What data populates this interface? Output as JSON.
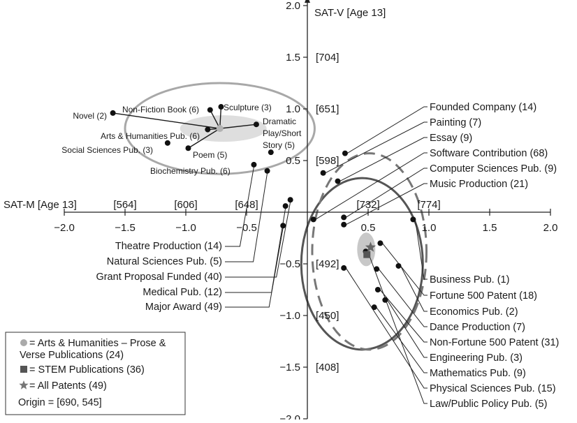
{
  "chart_data": {
    "type": "scatter",
    "xlabel": "SAT-M [Age 13]",
    "ylabel": "SAT-V [Age 13]",
    "xlim": [
      -2.0,
      2.0
    ],
    "ylim": [
      -2.0,
      2.0
    ],
    "x_ticks": [
      "−2.0",
      "−1.5",
      "−1.0",
      "−0.5",
      "0.5",
      "1.0",
      "1.5",
      "2.0"
    ],
    "y_ticks": [
      "2.0",
      "1.5",
      "1.0",
      "0.5",
      "−0.5",
      "−1.0",
      "−1.5",
      "−2.0"
    ],
    "x_bracket_labels": [
      "[564]",
      "[606]",
      "[648]",
      "[732]",
      "[774]"
    ],
    "y_bracket_labels": [
      "[704]",
      "[651]",
      "[598]",
      "[492]",
      "[450]",
      "[408]"
    ],
    "grid": false,
    "legend_position": "bottom-left",
    "legend": [
      {
        "symbol": "circle",
        "text": "= Arts & Humanities – Prose & Verse Publications (24)"
      },
      {
        "symbol": "square",
        "text": "= STEM Publications (36)"
      },
      {
        "symbol": "star",
        "text": "= All Patents (49)"
      },
      {
        "symbol": "",
        "text": "Origin = [690, 545]"
      }
    ],
    "centroids": {
      "arts_humanities": {
        "x": -0.72,
        "y": 0.81
      },
      "stem": {
        "x": 0.49,
        "y": -0.41
      },
      "patents": {
        "x": 0.52,
        "y": -0.34
      }
    },
    "arts_points": [
      {
        "label": "Novel (2)",
        "x": -1.6,
        "y": 0.96
      },
      {
        "label": "Non-Fiction Book (6)",
        "x": -0.8,
        "y": 0.99
      },
      {
        "label": "Sculpture (3)",
        "x": -0.71,
        "y": 1.02
      },
      {
        "label": "Dramatic Play/Short Story (5)",
        "x": -0.42,
        "y": 0.85
      },
      {
        "label": "Arts & Humanities Pub. (6)",
        "x": -0.82,
        "y": 0.8
      },
      {
        "label": "Social Sciences Pub. (3)",
        "x": -1.15,
        "y": 0.67
      },
      {
        "label": "Poem (5)",
        "x": -0.98,
        "y": 0.62
      },
      {
        "label": "Biochemistry Pub. (6)",
        "x": -0.3,
        "y": 0.58
      }
    ],
    "left_points": [
      {
        "label": "Theatre Production (14)",
        "x": -0.44,
        "y": 0.46
      },
      {
        "label": "Natural Sciences Pub. (5)",
        "x": -0.33,
        "y": 0.4
      },
      {
        "label": "Grant Proposal Funded (40)",
        "x": -0.14,
        "y": 0.12
      },
      {
        "label": "Medical Pub. (12)",
        "x": -0.18,
        "y": 0.06
      },
      {
        "label": "Major Award (49)",
        "x": -0.2,
        "y": -0.13
      }
    ],
    "right_points": [
      {
        "label": "Founded Company (14)",
        "x": 0.31,
        "y": 0.57
      },
      {
        "label": "Painting (7)",
        "x": 0.13,
        "y": 0.38
      },
      {
        "label": "Essay (9)",
        "x": 0.25,
        "y": 0.3
      },
      {
        "label": "Software Contribution (68)",
        "x": 0.05,
        "y": -0.07
      },
      {
        "label": "Computer Sciences Pub. (9)",
        "x": 0.3,
        "y": -0.05
      },
      {
        "label": "Music Production (21)",
        "x": 0.3,
        "y": -0.12
      },
      {
        "label": "Business Pub. (1)",
        "x": 0.87,
        "y": -0.07
      },
      {
        "label": "Fortune 500 Patent (18)",
        "x": 0.6,
        "y": -0.3
      },
      {
        "label": "Economics Pub. (2)",
        "x": 0.75,
        "y": -0.52
      },
      {
        "label": "Dance Production (7)",
        "x": 0.57,
        "y": -0.55
      },
      {
        "label": "Non-Fortune 500 Patent (31)",
        "x": 0.58,
        "y": -0.75
      },
      {
        "label": "Engineering Pub. (3)",
        "x": 0.64,
        "y": -0.85
      },
      {
        "label": "Mathematics Pub. (9)",
        "x": 0.55,
        "y": -0.92
      },
      {
        "label": "Physical Sciences Pub. (15)",
        "x": 0.3,
        "y": -0.54
      },
      {
        "label": "Law/Public Policy Pub. (5)",
        "x": 0.48,
        "y": -0.38
      }
    ],
    "ellipses": {
      "arts": {
        "cx": -0.72,
        "cy": 0.81,
        "rx": 0.78,
        "ry": 0.44,
        "color": "#a8a8a8"
      },
      "stem": {
        "cx": 0.45,
        "cy": -0.5,
        "rx": 0.5,
        "ry": 0.83,
        "color": "#555555"
      },
      "patents": {
        "cx": 0.51,
        "cy": -0.38,
        "rx": 0.47,
        "ry": 0.95,
        "color": "#777777"
      }
    }
  }
}
